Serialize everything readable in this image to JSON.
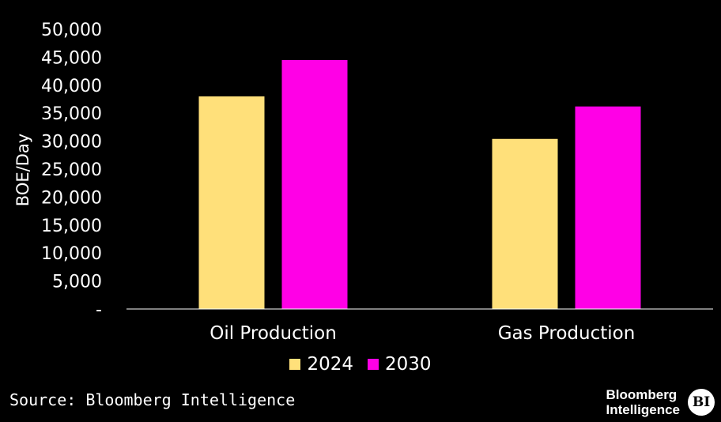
{
  "chart_data": {
    "type": "bar",
    "categories": [
      "Oil Production",
      "Gas Production"
    ],
    "series": [
      {
        "name": "2024",
        "values": [
          38000,
          30400
        ],
        "color": "#FFE07A"
      },
      {
        "name": "2030",
        "values": [
          44500,
          36200
        ],
        "color": "#FF00E6"
      }
    ],
    "ylabel": "BOE/Day",
    "xlabel": "",
    "ylim": [
      0,
      50000
    ],
    "yticks": [
      {
        "value": 0,
        "label": "-"
      },
      {
        "value": 5000,
        "label": "5,000"
      },
      {
        "value": 10000,
        "label": "10,000"
      },
      {
        "value": 15000,
        "label": "15,000"
      },
      {
        "value": 20000,
        "label": "20,000"
      },
      {
        "value": 25000,
        "label": "25,000"
      },
      {
        "value": 30000,
        "label": "30,000"
      },
      {
        "value": 35000,
        "label": "35,000"
      },
      {
        "value": 40000,
        "label": "40,000"
      },
      {
        "value": 45000,
        "label": "45,000"
      },
      {
        "value": 50000,
        "label": "50,000"
      }
    ],
    "grid": false,
    "legend_position": "bottom-center"
  },
  "source": "Source: Bloomberg Intelligence",
  "brand": {
    "line1": "Bloomberg",
    "line2": "Intelligence",
    "badge": "BI"
  }
}
